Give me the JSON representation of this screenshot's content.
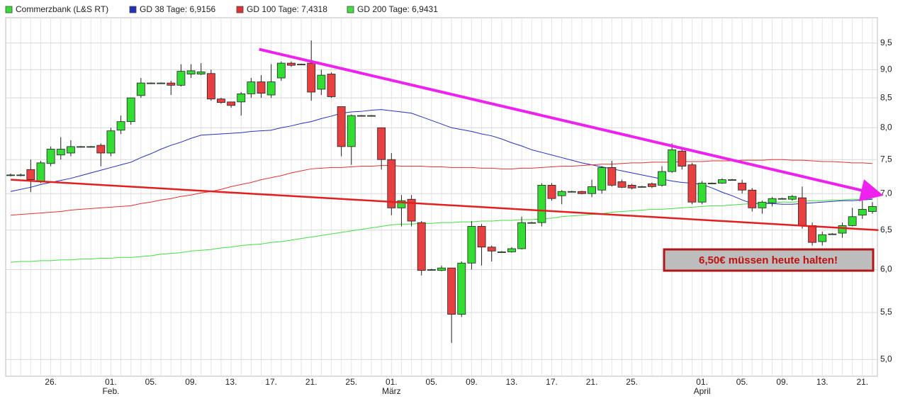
{
  "chart_data": {
    "type": "candlestick",
    "log_scale": true,
    "grid": true,
    "annotation": "6,50€ müssen heute halten!",
    "ylim": [
      4.84,
      10.0
    ],
    "yticks": [
      {
        "value": 5.0,
        "label": "5,0"
      },
      {
        "value": 5.5,
        "label": "5,5"
      },
      {
        "value": 6.0,
        "label": "6,0"
      },
      {
        "value": 6.5,
        "label": "6,5"
      },
      {
        "value": 7.0,
        "label": "7,0"
      },
      {
        "value": 7.5,
        "label": "7,5"
      },
      {
        "value": 8.0,
        "label": "8,0"
      },
      {
        "value": 8.5,
        "label": "8,5"
      },
      {
        "value": 9.0,
        "label": "9,0"
      },
      {
        "value": 9.5,
        "label": "9,5"
      }
    ],
    "categories": [
      null,
      null,
      null,
      null,
      "26.",
      null,
      null,
      null,
      null,
      null,
      "01.",
      null,
      null,
      null,
      "05.",
      null,
      null,
      null,
      "09.",
      null,
      null,
      null,
      "13.",
      null,
      null,
      null,
      "17.",
      null,
      null,
      null,
      "21.",
      null,
      null,
      null,
      "25.",
      null,
      null,
      null,
      "01.",
      null,
      null,
      null,
      "05.",
      null,
      null,
      null,
      "09.",
      null,
      null,
      null,
      "13.",
      null,
      null,
      null,
      "17.",
      null,
      null,
      null,
      "21.",
      null,
      null,
      null,
      "25.",
      null,
      null,
      null,
      null,
      null,
      null,
      "01.",
      null,
      null,
      null,
      "05.",
      null,
      null,
      null,
      "09.",
      null,
      null,
      null,
      "13.",
      null,
      null,
      null,
      "21.",
      null
    ],
    "months": [
      {
        "label": "Feb.",
        "at": 10
      },
      {
        "label": "März",
        "at": 38
      },
      {
        "label": "April",
        "at": 69
      }
    ],
    "series": [
      {
        "name": "Commerzbank (L&S RT)",
        "color": "#33dd33",
        "down_color": "#e84040",
        "open": [
          7.27,
          7.27,
          7.35,
          7.18,
          7.44,
          7.57,
          7.6,
          7.7,
          7.7,
          7.72,
          7.6,
          7.96,
          8.1,
          8.54,
          8.76,
          8.76,
          8.76,
          8.72,
          8.92,
          8.92,
          8.93,
          8.48,
          8.43,
          8.43,
          8.57,
          8.78,
          8.55,
          8.85,
          9.12,
          9.1,
          9.12,
          8.65,
          8.92,
          8.35,
          7.7,
          8.2,
          8.2,
          8.0,
          7.5,
          6.8,
          6.92,
          6.6,
          6.0,
          5.99,
          6.02,
          5.48,
          6.08,
          6.55,
          6.28,
          6.22,
          6.22,
          6.26,
          6.6,
          6.6,
          7.12,
          6.97,
          7.03,
          7.03,
          7.0,
          7.05,
          7.38,
          7.17,
          7.12,
          7.1,
          7.14,
          7.12,
          7.32,
          7.63,
          7.42,
          6.88,
          7.15,
          7.15,
          7.2,
          7.15,
          7.05,
          6.8,
          6.87,
          6.93,
          6.92,
          6.94,
          6.56,
          6.35,
          6.45,
          6.46,
          6.56,
          6.7,
          6.75
        ],
        "high": [
          7.29,
          7.29,
          7.5,
          7.48,
          7.7,
          7.85,
          7.8,
          7.71,
          7.71,
          7.75,
          8.0,
          8.2,
          8.5,
          8.85,
          8.77,
          8.77,
          8.8,
          9.1,
          9.1,
          9.12,
          9.0,
          8.5,
          8.42,
          8.6,
          8.85,
          8.9,
          9.1,
          9.15,
          9.15,
          9.11,
          9.55,
          9.0,
          8.95,
          8.35,
          8.22,
          8.21,
          8.21,
          8.0,
          7.6,
          6.98,
          6.98,
          6.62,
          6.01,
          6.05,
          6.02,
          6.1,
          6.62,
          6.58,
          6.3,
          6.23,
          6.28,
          6.68,
          6.61,
          7.15,
          7.15,
          7.05,
          7.04,
          7.04,
          7.2,
          7.4,
          7.48,
          7.2,
          7.14,
          7.11,
          7.16,
          7.4,
          7.75,
          7.68,
          7.45,
          7.18,
          7.16,
          7.22,
          7.21,
          7.2,
          7.08,
          6.9,
          6.95,
          6.94,
          6.98,
          7.1,
          6.6,
          6.48,
          6.46,
          6.6,
          6.8,
          6.9,
          6.88
        ],
        "low": [
          7.25,
          7.25,
          7.02,
          7.15,
          7.4,
          7.5,
          7.55,
          7.69,
          7.69,
          7.4,
          7.55,
          7.9,
          8.05,
          8.5,
          8.75,
          8.75,
          8.55,
          8.7,
          8.85,
          8.9,
          8.45,
          8.4,
          8.33,
          8.2,
          8.5,
          8.5,
          8.5,
          8.8,
          9.05,
          9.09,
          8.45,
          8.55,
          8.5,
          7.55,
          7.42,
          8.19,
          8.19,
          7.35,
          6.7,
          6.55,
          6.55,
          5.93,
          5.99,
          5.98,
          5.17,
          5.45,
          6.0,
          6.05,
          6.1,
          6.21,
          6.21,
          6.25,
          6.59,
          6.55,
          6.9,
          6.85,
          7.02,
          6.99,
          6.95,
          7.0,
          7.1,
          7.08,
          7.06,
          7.09,
          7.08,
          7.1,
          7.3,
          7.35,
          6.85,
          6.85,
          7.14,
          7.14,
          7.19,
          7.0,
          6.75,
          6.72,
          6.82,
          6.92,
          6.9,
          6.52,
          6.3,
          6.3,
          6.44,
          6.4,
          6.55,
          6.65,
          6.72
        ],
        "close": [
          7.27,
          7.27,
          7.2,
          7.45,
          7.66,
          7.66,
          7.7,
          7.7,
          7.7,
          7.6,
          7.95,
          8.1,
          8.5,
          8.76,
          8.76,
          8.76,
          8.72,
          8.97,
          8.98,
          8.96,
          8.48,
          8.42,
          8.37,
          8.57,
          8.78,
          8.58,
          8.78,
          9.12,
          9.08,
          9.1,
          8.6,
          8.9,
          8.52,
          7.7,
          8.2,
          8.2,
          8.2,
          7.5,
          6.8,
          6.9,
          6.62,
          5.99,
          6.0,
          6.02,
          5.48,
          6.08,
          6.55,
          6.28,
          6.23,
          6.22,
          6.26,
          6.6,
          6.6,
          7.12,
          6.93,
          7.03,
          7.03,
          7.0,
          7.1,
          7.38,
          7.12,
          7.09,
          7.08,
          7.1,
          7.1,
          7.32,
          7.65,
          7.4,
          6.88,
          7.15,
          7.15,
          7.2,
          7.2,
          7.05,
          6.8,
          6.88,
          6.93,
          6.93,
          6.96,
          6.56,
          6.34,
          6.44,
          6.45,
          6.56,
          6.68,
          6.78,
          6.82
        ]
      },
      {
        "name": "GD 38 Tage: 6,9156",
        "color": "#2233bb",
        "values": [
          7.03,
          7.06,
          7.09,
          7.13,
          7.16,
          7.19,
          7.22,
          7.26,
          7.3,
          7.34,
          7.38,
          7.42,
          7.46,
          7.53,
          7.59,
          7.66,
          7.72,
          7.77,
          7.83,
          7.88,
          7.89,
          7.9,
          7.91,
          7.92,
          7.94,
          7.95,
          7.96,
          8.0,
          8.03,
          8.07,
          8.1,
          8.15,
          8.19,
          8.24,
          8.26,
          8.27,
          8.29,
          8.3,
          8.28,
          8.26,
          8.24,
          8.18,
          8.12,
          8.06,
          8.0,
          7.97,
          7.94,
          7.9,
          7.87,
          7.82,
          7.76,
          7.71,
          7.65,
          7.61,
          7.57,
          7.53,
          7.49,
          7.45,
          7.42,
          7.39,
          7.36,
          7.33,
          7.3,
          7.27,
          7.24,
          7.21,
          7.18,
          7.16,
          7.15,
          7.13,
          7.08,
          7.02,
          6.97,
          6.91,
          6.86,
          6.86,
          6.86,
          6.85,
          6.85,
          6.86,
          6.87,
          6.88,
          6.89,
          6.9,
          6.9,
          6.91,
          6.92
        ]
      },
      {
        "name": "GD 100 Tage: 7,4318",
        "color": "#dd3333",
        "values": [
          6.7,
          6.71,
          6.72,
          6.73,
          6.74,
          6.75,
          6.77,
          6.78,
          6.79,
          6.8,
          6.81,
          6.82,
          6.83,
          6.86,
          6.88,
          6.91,
          6.93,
          6.96,
          6.98,
          7.01,
          7.03,
          7.06,
          7.1,
          7.13,
          7.16,
          7.2,
          7.23,
          7.26,
          7.3,
          7.33,
          7.36,
          7.37,
          7.38,
          7.38,
          7.39,
          7.4,
          7.4,
          7.41,
          7.41,
          7.4,
          7.4,
          7.4,
          7.39,
          7.39,
          7.38,
          7.38,
          7.38,
          7.37,
          7.37,
          7.36,
          7.36,
          7.37,
          7.37,
          7.38,
          7.39,
          7.4,
          7.4,
          7.41,
          7.42,
          7.43,
          7.43,
          7.44,
          7.45,
          7.45,
          7.46,
          7.46,
          7.46,
          7.47,
          7.47,
          7.47,
          7.48,
          7.48,
          7.48,
          7.49,
          7.49,
          7.49,
          7.5,
          7.5,
          7.49,
          7.49,
          7.48,
          7.47,
          7.47,
          7.46,
          7.45,
          7.45,
          7.44
        ]
      },
      {
        "name": "GD 200 Tage: 6,9431",
        "color": "#44dd44",
        "values": [
          6.09,
          6.1,
          6.1,
          6.11,
          6.11,
          6.12,
          6.12,
          6.13,
          6.13,
          6.14,
          6.14,
          6.15,
          6.15,
          6.16,
          6.17,
          6.19,
          6.2,
          6.21,
          6.23,
          6.24,
          6.25,
          6.27,
          6.28,
          6.3,
          6.31,
          6.32,
          6.34,
          6.35,
          6.37,
          6.39,
          6.41,
          6.43,
          6.45,
          6.47,
          6.49,
          6.51,
          6.53,
          6.55,
          6.57,
          6.58,
          6.58,
          6.59,
          6.59,
          6.6,
          6.6,
          6.61,
          6.61,
          6.62,
          6.62,
          6.63,
          6.63,
          6.64,
          6.64,
          6.65,
          6.66,
          6.68,
          6.69,
          6.7,
          6.71,
          6.72,
          6.74,
          6.75,
          6.76,
          6.77,
          6.78,
          6.78,
          6.79,
          6.8,
          6.81,
          6.82,
          6.83,
          6.83,
          6.84,
          6.85,
          6.86,
          6.87,
          6.87,
          6.88,
          6.88,
          6.89,
          6.9,
          6.9,
          6.91,
          6.91,
          6.92,
          6.92,
          6.93
        ]
      }
    ],
    "trend_lines": [
      {
        "color": "#ee22ee",
        "start": [
          24.8,
          9.38
        ],
        "end": [
          86,
          7.01
        ],
        "arrow": true
      },
      {
        "color": "#e02020",
        "start": [
          0,
          7.2
        ],
        "end": [
          86.6,
          6.5
        ],
        "arrow": false
      }
    ]
  }
}
